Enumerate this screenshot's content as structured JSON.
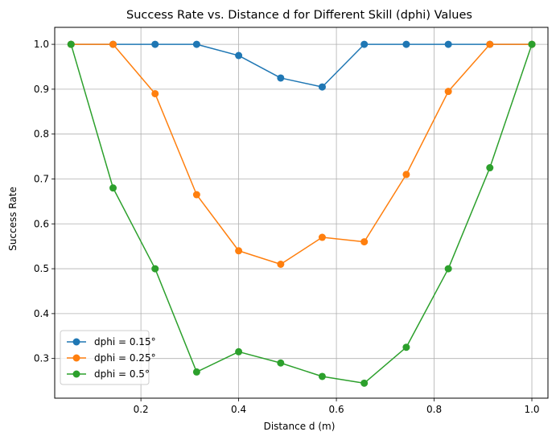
{
  "chart_data": {
    "type": "line",
    "title": "Success Rate vs. Distance d for Different Skill (dphi) Values",
    "xlabel": "Distance d (m)",
    "ylabel": "Success Rate",
    "xlim": [
      0.0236,
      1.0329
    ],
    "ylim": [
      0.2116,
      1.0378
    ],
    "xticks": [
      0.2,
      0.4,
      0.6,
      0.8,
      1.0
    ],
    "xtick_labels": [
      "0.2",
      "0.4",
      "0.6",
      "0.8",
      "1.0"
    ],
    "yticks": [
      0.3,
      0.4,
      0.5,
      0.6,
      0.7,
      0.8,
      0.9,
      1.0
    ],
    "ytick_labels": [
      "0.3",
      "0.4",
      "0.5",
      "0.6",
      "0.7",
      "0.8",
      "0.9",
      "1.0"
    ],
    "grid": true,
    "legend_position": "lower-left",
    "x": [
      0.057,
      0.143,
      0.229,
      0.314,
      0.4,
      0.486,
      0.571,
      0.657,
      0.743,
      0.829,
      0.914,
      1.0
    ],
    "series": [
      {
        "name": "dphi = 0.15°",
        "color": "#1f77b4",
        "values": [
          1.0,
          1.0,
          1.0,
          1.0,
          0.975,
          0.925,
          0.905,
          1.0,
          1.0,
          1.0,
          1.0,
          1.0
        ]
      },
      {
        "name": "dphi = 0.25°",
        "color": "#ff7f0e",
        "values": [
          1.0,
          1.0,
          0.89,
          0.665,
          0.54,
          0.51,
          0.57,
          0.56,
          0.71,
          0.895,
          1.0,
          1.0
        ]
      },
      {
        "name": "dphi = 0.5°",
        "color": "#2ca02c",
        "values": [
          1.0,
          0.68,
          0.5,
          0.27,
          0.315,
          0.29,
          0.26,
          0.245,
          0.325,
          0.5,
          0.725,
          1.0
        ]
      }
    ]
  }
}
